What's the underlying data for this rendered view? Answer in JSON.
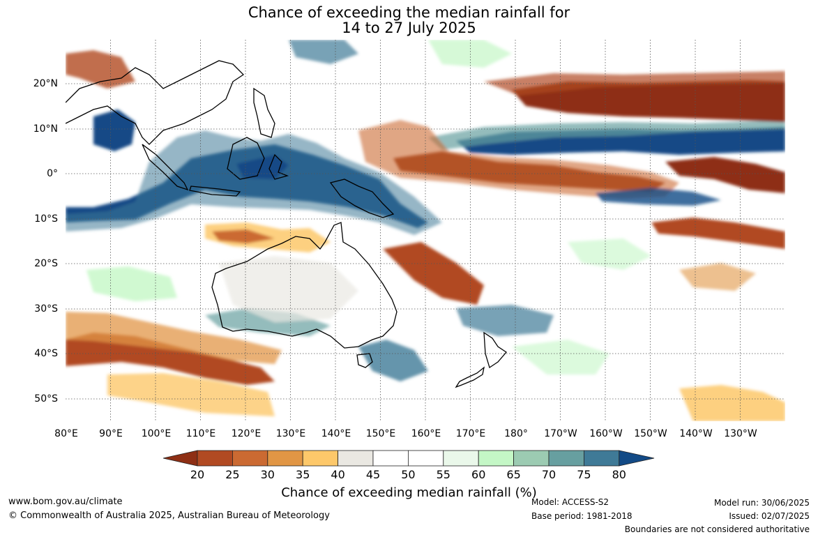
{
  "title": {
    "line1": "Chance of exceeding the median rainfall for",
    "line2": "14 to 27 July 2025"
  },
  "map": {
    "lon_labels": [
      "80°E",
      "90°E",
      "100°E",
      "110°E",
      "120°E",
      "130°E",
      "140°E",
      "150°E",
      "160°E",
      "170°E",
      "180°",
      "170°W",
      "160°W",
      "150°W",
      "140°W",
      "130°W"
    ],
    "lat_labels": [
      "20°N",
      "10°N",
      "0°",
      "10°S",
      "20°S",
      "30°S",
      "40°S",
      "50°S"
    ],
    "lon_range": [
      80,
      240
    ],
    "lat_range": [
      -55,
      29
    ],
    "gridlines": true
  },
  "colorbar": {
    "title": "Chance of exceeding median rainfall (%)",
    "ticks": [
      "20",
      "25",
      "30",
      "35",
      "40",
      "45",
      "50",
      "55",
      "60",
      "65",
      "70",
      "75",
      "80"
    ],
    "colors": [
      "#8e2f14",
      "#b14a22",
      "#cb6a32",
      "#e19645",
      "#fdc86a",
      "#eae8e2",
      "#ffffff",
      "#ffffff",
      "#eaf8ea",
      "#c4f7c6",
      "#9ccbb2",
      "#679fa0",
      "#3f7a97",
      "#124a86"
    ]
  },
  "footer": {
    "url": "www.bom.gov.au/climate",
    "copyright": "© Commonwealth of Australia 2025, Australian Bureau of Meteorology",
    "model": "Model: ACCESS-S2",
    "base_period": "Base period: 1981-2018",
    "model_run": "Model run: 30/06/2025",
    "issued": "Issued: 02/07/2025",
    "boundaries": "Boundaries are not considered authoritative"
  }
}
